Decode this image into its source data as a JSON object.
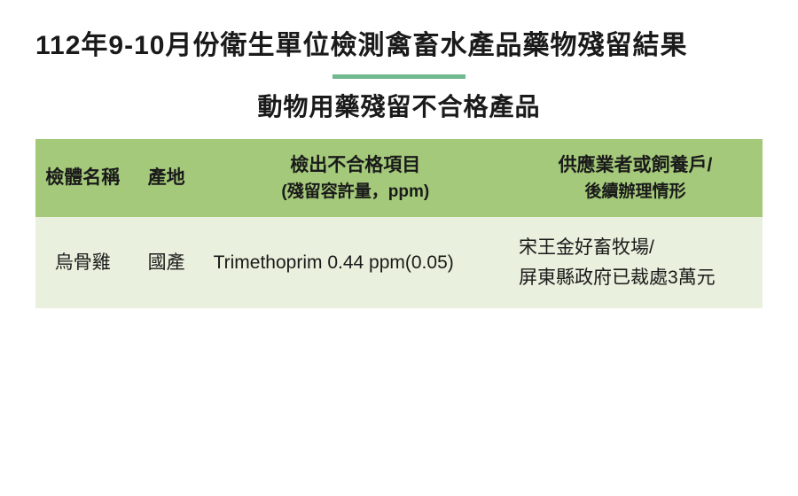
{
  "title": "112年9-10月份衛生單位檢測禽畜水產品藥物殘留結果",
  "subtitle": "動物用藥殘留不合格產品",
  "colors": {
    "divider": "#6fb98f",
    "header_bg": "#a4c97a",
    "row_alt_bg": "#e9f0dd",
    "row_bg": "#ffffff",
    "text": "#1a1a1a"
  },
  "table": {
    "columns": [
      {
        "label": "檢體名稱",
        "sub": ""
      },
      {
        "label": "產地",
        "sub": ""
      },
      {
        "label": "檢出不合格項目",
        "sub": "(殘留容許量，ppm)"
      },
      {
        "label": "供應業者或飼養戶/",
        "sub": "後續辦理情形"
      }
    ],
    "rows": [
      {
        "name": "烏骨雞",
        "origin": "國產",
        "item": "Trimethoprim 0.44 ppm(0.05)",
        "supplier": "宋王金好畜牧場/\n屏東縣政府已裁處3萬元"
      }
    ]
  }
}
